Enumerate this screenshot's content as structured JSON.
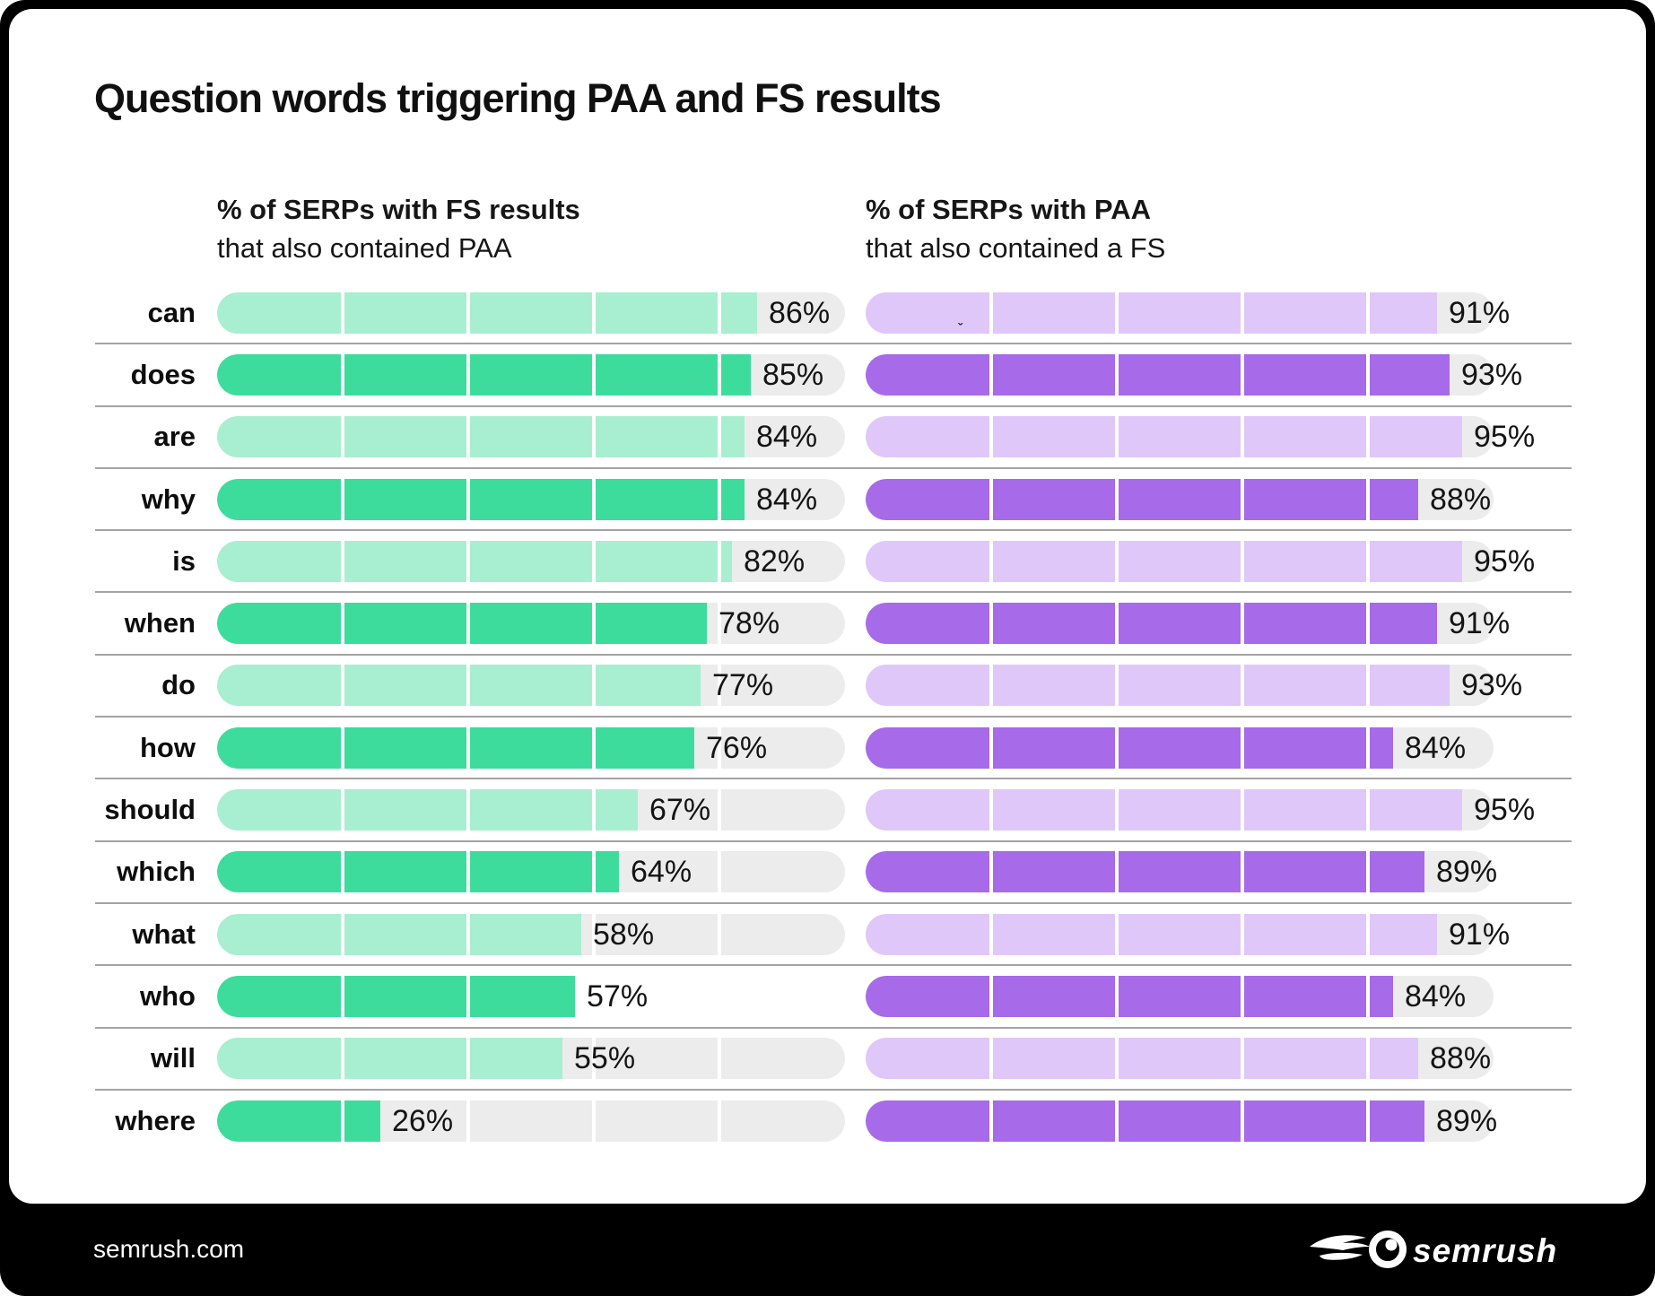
{
  "title": "Question words triggering PAA and FS results",
  "columns": {
    "left": {
      "title": "% of SERPs with FS results",
      "subtitle": "that also contained PAA"
    },
    "right": {
      "title": "% of SERPs with PAA",
      "subtitle": "that also contained a FS"
    }
  },
  "chart_data": {
    "type": "bar",
    "orientation": "horizontal",
    "title": "Question words triggering PAA and FS results",
    "categories": [
      "can",
      "does",
      "are",
      "why",
      "is",
      "when",
      "do",
      "how",
      "should",
      "which",
      "what",
      "who",
      "will",
      "where"
    ],
    "series": [
      {
        "name": "% of SERPs with FS results that also contained PAA",
        "values": [
          86,
          85,
          84,
          84,
          82,
          78,
          77,
          76,
          67,
          64,
          58,
          57,
          55,
          26
        ],
        "colors": {
          "light": "#A8EED0",
          "dark": "#3EDC9C"
        }
      },
      {
        "name": "% of SERPs with PAA that also contained a FS",
        "values": [
          91,
          93,
          95,
          88,
          95,
          91,
          93,
          84,
          95,
          89,
          91,
          84,
          88,
          89
        ],
        "colors": {
          "light": "#DFC7FA",
          "dark": "#A76AE8"
        }
      }
    ],
    "value_suffix": "%",
    "xlim": [
      0,
      100
    ],
    "gridline_step": 20,
    "grid": true,
    "legend_position": "none",
    "track_color": "#ECECEC",
    "missing_track_bg": {
      "row": "who",
      "column": "left"
    }
  },
  "stray_mark": "ˇ",
  "footer": {
    "site": "semrush.com",
    "logo_text": "semrush"
  }
}
